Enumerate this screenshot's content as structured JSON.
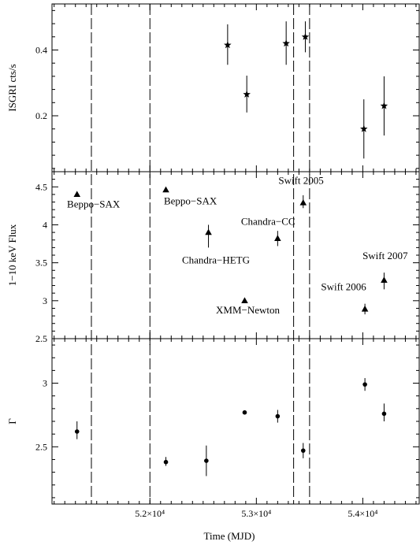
{
  "chart_data": [
    {
      "type": "scatter",
      "id": "isgri",
      "ylabel": "ISGRI cts/s",
      "ylim": [
        0.03,
        0.54
      ],
      "yticks": [
        0.2,
        0.4
      ],
      "ytick_labels": [
        "0.2",
        "0.4"
      ],
      "marker": "star",
      "points": [
        {
          "x": 52730,
          "y": 0.415,
          "ylo": 0.355,
          "yhi": 0.478
        },
        {
          "x": 52910,
          "y": 0.265,
          "ylo": 0.21,
          "yhi": 0.322
        },
        {
          "x": 53280,
          "y": 0.42,
          "ylo": 0.355,
          "yhi": 0.487
        },
        {
          "x": 53460,
          "y": 0.44,
          "ylo": 0.393,
          "yhi": 0.487
        },
        {
          "x": 54010,
          "y": 0.16,
          "ylo": 0.07,
          "yhi": 0.25
        },
        {
          "x": 54200,
          "y": 0.23,
          "ylo": 0.14,
          "yhi": 0.32
        }
      ]
    },
    {
      "type": "scatter",
      "id": "flux",
      "ylabel": "1−10 keV Flux",
      "ylim": [
        2.5,
        4.7
      ],
      "yticks": [
        2.5,
        3,
        3.5,
        4,
        4.5
      ],
      "ytick_labels": [
        "2.5",
        "3",
        "3.5",
        "4",
        "4.5"
      ],
      "marker": "triangle",
      "points": [
        {
          "x": 51315,
          "y": 4.4
        },
        {
          "x": 52150,
          "y": 4.46
        },
        {
          "x": 52550,
          "y": 3.9,
          "ylo": 3.7,
          "yhi": 4.0
        },
        {
          "x": 52890,
          "y": 3.0
        },
        {
          "x": 53200,
          "y": 3.82,
          "ylo": 3.72,
          "yhi": 3.92
        },
        {
          "x": 53440,
          "y": 4.29,
          "ylo": 4.22,
          "yhi": 4.39
        },
        {
          "x": 54020,
          "y": 2.89,
          "ylo": 2.82,
          "yhi": 2.96
        },
        {
          "x": 54200,
          "y": 3.27,
          "ylo": 3.15,
          "yhi": 3.37
        }
      ],
      "annotations": [
        {
          "text": "Beppo−SAX",
          "x": 51470,
          "y": 4.23
        },
        {
          "text": "Beppo−SAX",
          "x": 52380,
          "y": 4.27
        },
        {
          "text": "Chandra−HETG",
          "x": 52620,
          "y": 3.49
        },
        {
          "text": "Chandra−CC",
          "x": 53110,
          "y": 4.0
        },
        {
          "text": "XMM−Newton",
          "x": 52920,
          "y": 2.83
        },
        {
          "text": "Swift 2005",
          "x": 53420,
          "y": 4.54
        },
        {
          "text": "Swift 2006",
          "x": 53820,
          "y": 3.14
        },
        {
          "text": "Swift 2007",
          "x": 54210,
          "y": 3.55
        }
      ]
    },
    {
      "type": "scatter",
      "id": "gamma",
      "ylabel": "Γ",
      "ylim": [
        2.05,
        3.35
      ],
      "yticks": [
        2.5,
        3
      ],
      "ytick_labels": [
        "2.5",
        "3"
      ],
      "marker": "circle",
      "points": [
        {
          "x": 51315,
          "y": 2.62,
          "ylo": 2.56,
          "yhi": 2.7
        },
        {
          "x": 52150,
          "y": 2.38,
          "ylo": 2.35,
          "yhi": 2.42
        },
        {
          "x": 52530,
          "y": 2.39,
          "ylo": 2.27,
          "yhi": 2.51
        },
        {
          "x": 52890,
          "y": 2.77
        },
        {
          "x": 53200,
          "y": 2.74,
          "ylo": 2.69,
          "yhi": 2.79
        },
        {
          "x": 53440,
          "y": 2.47,
          "ylo": 2.41,
          "yhi": 2.53
        },
        {
          "x": 54020,
          "y": 2.99,
          "ylo": 2.94,
          "yhi": 3.04
        },
        {
          "x": 54200,
          "y": 2.76,
          "ylo": 2.7,
          "yhi": 2.84
        }
      ]
    }
  ],
  "x_axis": {
    "xlabel": "Time (MJD)",
    "xlim": [
      51080,
      54530
    ],
    "major_ticks": [
      52000,
      53000,
      54000
    ],
    "tick_labels": [
      "5.2×10⁴",
      "5.3×10⁴",
      "5.4×10⁴"
    ],
    "minor_step": 100
  },
  "vertical_dashed_lines": [
    51450,
    52000,
    53350,
    53500
  ]
}
